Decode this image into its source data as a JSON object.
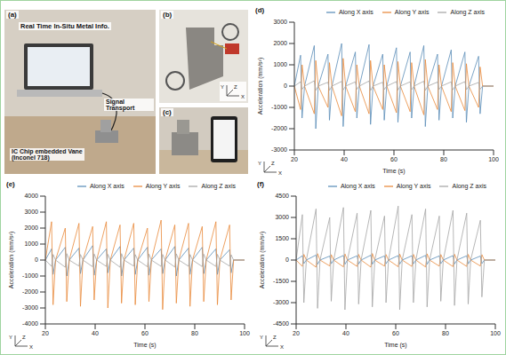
{
  "photo_panels": [
    {
      "label": "(a)",
      "texts": [
        "Real Time In-Situ Metal Info.",
        "Signal Transport",
        "IC Chip embedded Vane",
        "(Inconel 718)"
      ]
    },
    {
      "label": "(b)",
      "axes": [
        "Y",
        "X",
        "Z"
      ]
    },
    {
      "label": "(c)"
    }
  ],
  "chart_data": [
    {
      "label": "(d)",
      "type": "line",
      "x_label": "Time (s)",
      "y_label": "Acceleration (mm/s²)",
      "legend": "top",
      "axes_glyph": [
        "Y",
        "Z",
        "X"
      ],
      "xlim": [
        20,
        100
      ],
      "xticks": [
        20,
        40,
        60,
        80,
        100
      ],
      "ylim": [
        -3000,
        3000
      ],
      "yticks": [
        -3000,
        -2000,
        -1000,
        0,
        1000,
        2000,
        3000
      ],
      "x": [
        20,
        22.5,
        23.1,
        24.1,
        28,
        28.6,
        29.6,
        33.5,
        34.1,
        35.1,
        39,
        39.6,
        40.6,
        44.5,
        45.1,
        46.1,
        50,
        50.6,
        51.6,
        55.5,
        56.1,
        57.1,
        61,
        61.6,
        62.6,
        66.5,
        67.1,
        68.1,
        72,
        72.6,
        73.6,
        77.5,
        78.1,
        79.1,
        83,
        83.6,
        84.6,
        88.5,
        89.1,
        90.1,
        94,
        94.6,
        95.6,
        100
      ],
      "series": [
        {
          "name": "Along X axis",
          "color": "#5b8db8",
          "values": [
            0,
            1450,
            -1500,
            0,
            1900,
            -2000,
            0,
            1500,
            -1600,
            0,
            2000,
            -1900,
            0,
            1600,
            -1500,
            0,
            1950,
            -1800,
            0,
            1500,
            -1600,
            0,
            1800,
            -1700,
            0,
            1600,
            -1500,
            0,
            1900,
            -1900,
            0,
            1500,
            -1600,
            0,
            1700,
            -1500,
            0,
            1600,
            -1700,
            0,
            1400,
            -1300,
            0,
            0
          ]
        },
        {
          "name": "Along Y axis",
          "color": "#e8893a",
          "values": [
            0,
            -1100,
            1000,
            0,
            -1300,
            1200,
            0,
            -1000,
            1100,
            0,
            -1400,
            1300,
            0,
            -1200,
            1000,
            0,
            -1300,
            1200,
            0,
            -1100,
            1000,
            0,
            -1250,
            1150,
            0,
            -1200,
            1100,
            0,
            -1350,
            1250,
            0,
            -1100,
            1000,
            0,
            -1200,
            1100,
            0,
            -1150,
            1050,
            0,
            -1000,
            900,
            0,
            0
          ]
        },
        {
          "name": "Along Z axis",
          "color": "#a5a5a5",
          "values": [
            0,
            200,
            -150,
            0,
            250,
            -200,
            0,
            180,
            -200,
            0,
            220,
            -180,
            0,
            200,
            -150,
            0,
            240,
            -210,
            0,
            180,
            -160,
            0,
            210,
            -190,
            0,
            200,
            -170,
            0,
            230,
            -200,
            0,
            190,
            -160,
            0,
            200,
            -180,
            0,
            210,
            -170,
            0,
            170,
            -150,
            0,
            0
          ]
        }
      ]
    },
    {
      "label": "(e)",
      "type": "line",
      "x_label": "Time (s)",
      "y_label": "Acceleration (mm/s²)",
      "legend": "top",
      "axes_glyph": [
        "Y",
        "Z",
        "X"
      ],
      "xlim": [
        20,
        100
      ],
      "xticks": [
        20,
        40,
        60,
        80,
        100
      ],
      "ylim": [
        -4000,
        4000
      ],
      "yticks": [
        -4000,
        -3000,
        -2000,
        -1000,
        0,
        1000,
        2000,
        3000,
        4000
      ],
      "x": [
        20,
        22.5,
        23.1,
        24.1,
        28,
        28.6,
        29.6,
        33.5,
        34.1,
        35.1,
        39,
        39.6,
        40.6,
        44.5,
        45.1,
        46.1,
        50,
        50.6,
        51.6,
        55.5,
        56.1,
        57.1,
        61,
        61.6,
        62.6,
        66.5,
        67.1,
        68.1,
        72,
        72.6,
        73.6,
        77.5,
        78.1,
        79.1,
        83,
        83.6,
        84.6,
        88.5,
        89.1,
        90.1,
        94,
        94.6,
        95.6,
        100
      ],
      "series": [
        {
          "name": "Along X axis",
          "color": "#5b8db8",
          "values": [
            0,
            700,
            -900,
            0,
            800,
            -1000,
            0,
            750,
            -850,
            0,
            900,
            -950,
            0,
            700,
            -800,
            0,
            850,
            -1000,
            0,
            750,
            -900,
            0,
            800,
            -950,
            0,
            700,
            -850,
            0,
            850,
            -1000,
            0,
            750,
            -900,
            0,
            800,
            -850,
            0,
            700,
            -900,
            0,
            650,
            -800,
            0,
            0
          ]
        },
        {
          "name": "Along Y axis",
          "color": "#e8893a",
          "values": [
            0,
            2400,
            -2800,
            0,
            2000,
            -2600,
            0,
            2300,
            -2900,
            0,
            2100,
            -2500,
            0,
            2400,
            -3000,
            0,
            2200,
            -2700,
            0,
            2300,
            -2800,
            0,
            2000,
            -2600,
            0,
            2500,
            -3100,
            0,
            2200,
            -2700,
            0,
            2300,
            -2900,
            0,
            2100,
            -2600,
            0,
            2400,
            -2800,
            0,
            2200,
            -2500,
            0,
            0
          ]
        },
        {
          "name": "Along Z axis",
          "color": "#a5a5a5",
          "values": [
            0,
            -400,
            350,
            0,
            -450,
            400,
            0,
            -380,
            350,
            0,
            -420,
            380,
            0,
            -400,
            360,
            0,
            -450,
            400,
            0,
            -380,
            340,
            0,
            -420,
            380,
            0,
            -400,
            350,
            0,
            -440,
            390,
            0,
            -390,
            350,
            0,
            -410,
            370,
            0,
            -400,
            360,
            0,
            -380,
            330,
            0,
            0
          ]
        }
      ]
    },
    {
      "label": "(f)",
      "type": "line",
      "x_label": "Time (s)",
      "y_label": "Acceleration (mm/s²)",
      "legend": "top",
      "axes_glyph": [
        "Y",
        "Z",
        "X"
      ],
      "xlim": [
        20,
        100
      ],
      "xticks": [
        20,
        40,
        60,
        80,
        100
      ],
      "ylim": [
        -4500,
        4500
      ],
      "yticks": [
        -4500,
        -3000,
        -1500,
        0,
        1500,
        3000,
        4500
      ],
      "x": [
        20,
        22.5,
        23.1,
        24.1,
        28,
        28.6,
        29.6,
        33.5,
        34.1,
        35.1,
        39,
        39.6,
        40.6,
        44.5,
        45.1,
        46.1,
        50,
        50.6,
        51.6,
        55.5,
        56.1,
        57.1,
        61,
        61.6,
        62.6,
        66.5,
        67.1,
        68.1,
        72,
        72.6,
        73.6,
        77.5,
        78.1,
        79.1,
        83,
        83.6,
        84.6,
        88.5,
        89.1,
        90.1,
        94,
        94.6,
        95.6,
        100
      ],
      "series": [
        {
          "name": "Along X axis",
          "color": "#5b8db8",
          "values": [
            0,
            300,
            -250,
            0,
            350,
            -300,
            0,
            280,
            -260,
            0,
            320,
            -300,
            0,
            300,
            -280,
            0,
            340,
            -300,
            0,
            290,
            -260,
            0,
            310,
            -290,
            0,
            300,
            -270,
            0,
            330,
            -300,
            0,
            290,
            -260,
            0,
            310,
            -280,
            0,
            300,
            -270,
            0,
            280,
            -250,
            0,
            0
          ]
        },
        {
          "name": "Along Y axis",
          "color": "#e8893a",
          "values": [
            0,
            -450,
            400,
            0,
            -500,
            450,
            0,
            -420,
            380,
            0,
            -480,
            430,
            0,
            -450,
            400,
            0,
            -500,
            460,
            0,
            -430,
            390,
            0,
            -470,
            420,
            0,
            -450,
            400,
            0,
            -490,
            440,
            0,
            -430,
            390,
            0,
            -460,
            410,
            0,
            -450,
            400,
            0,
            -420,
            380,
            0,
            0
          ]
        },
        {
          "name": "Along Z axis",
          "color": "#a5a5a5",
          "values": [
            0,
            3200,
            -3000,
            0,
            3600,
            -3400,
            0,
            3000,
            -2900,
            0,
            3700,
            -3500,
            0,
            3300,
            -3100,
            0,
            3500,
            -3300,
            0,
            3100,
            -3000,
            0,
            3800,
            -3500,
            0,
            3200,
            -3000,
            0,
            3600,
            -3300,
            0,
            3100,
            -2900,
            0,
            3500,
            -3200,
            0,
            3300,
            -3100,
            0,
            2800,
            -2600,
            0,
            0
          ]
        }
      ]
    }
  ]
}
